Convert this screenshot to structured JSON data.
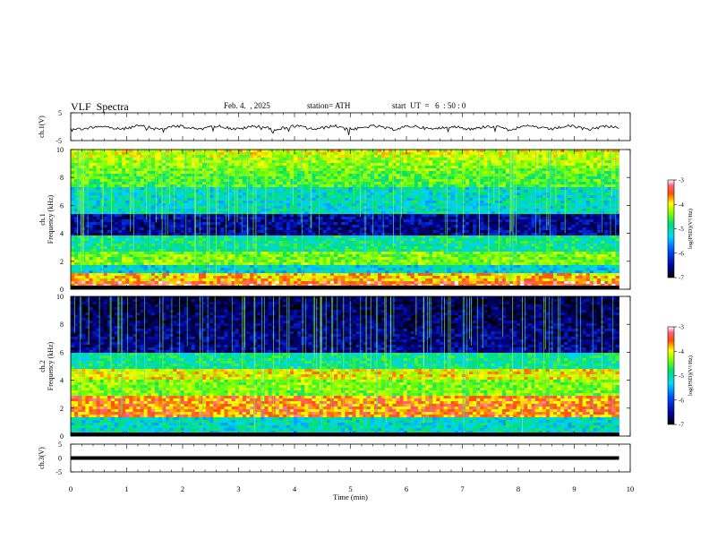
{
  "header": {
    "title": "VLF  Spectra",
    "date": "Feb. 4.  , 2025",
    "station": "station= ATH",
    "start": "start  UT  =   6  : 50 : 0"
  },
  "chart_data": [
    {
      "type": "line",
      "panel": "ch1-waveform",
      "ylabel": "ch.1(V)",
      "ylim": [
        -5,
        5
      ],
      "yticks": [
        "5",
        "-5"
      ],
      "xlim": [
        0,
        10
      ],
      "series": [
        {
          "values_note_free": true,
          "x": [
            0,
            9.8
          ],
          "y": [
            0,
            0
          ]
        }
      ]
    },
    {
      "type": "heatmap",
      "panel": "ch1-spectrogram",
      "ylabel_top": "ch.1",
      "ylabel": "Frequency  (kHz)",
      "ylim": [
        0,
        10
      ],
      "yticks": [
        "0",
        "2",
        "4",
        "6",
        "8",
        "10"
      ],
      "xlim": [
        0,
        10
      ],
      "data_end_min": 9.8,
      "colorbar": {
        "label": "log(PSD)(V²/Hz)",
        "range": [
          -7,
          -3
        ],
        "ticks": [
          "-3",
          "-4",
          "-5",
          "-6",
          "-7"
        ]
      },
      "bands_khz": [
        {
          "f": 0.3,
          "level": -3.4
        },
        {
          "f": 0.8,
          "level": -3.8
        },
        {
          "f": 1.5,
          "level": -5.3
        },
        {
          "f": 2.1,
          "level": -4.4
        },
        {
          "f": 3.3,
          "level": -5.0
        },
        {
          "f": 4.5,
          "level": -6.6
        },
        {
          "f": 6.2,
          "level": -5.2
        },
        {
          "f": 8.5,
          "level": -4.6
        }
      ]
    },
    {
      "type": "heatmap",
      "panel": "ch2-spectrogram",
      "ylabel_top": "ch.2",
      "ylabel": "Frequency  (kHz)",
      "ylim": [
        0,
        10
      ],
      "yticks": [
        "0",
        "2",
        "4",
        "6",
        "8",
        "10"
      ],
      "xlim": [
        0,
        10
      ],
      "data_end_min": 9.8,
      "colorbar": {
        "label": "log(PSD)(V²/Hz)",
        "range": [
          -7,
          -3
        ],
        "ticks": [
          "-3",
          "-4",
          "-5",
          "-6",
          "-7"
        ]
      },
      "bands_khz": [
        {
          "f": 0.5,
          "level": -5.2
        },
        {
          "f": 2.1,
          "level": -3.6
        },
        {
          "f": 3.5,
          "level": -4.4
        },
        {
          "f": 4.6,
          "level": -4.0
        },
        {
          "f": 5.0,
          "level": -5.0
        },
        {
          "f": 7.5,
          "level": -6.6
        }
      ]
    },
    {
      "type": "line",
      "panel": "ch3-waveform",
      "ylabel": "ch.3(V)",
      "ylim": [
        -5,
        5
      ],
      "yticks": [
        "5",
        "0",
        "-5"
      ],
      "xlim": [
        0,
        10
      ],
      "xlabel": "Time  (min)",
      "xticks": [
        "0",
        "1",
        "2",
        "3",
        "4",
        "5",
        "6",
        "7",
        "8",
        "9",
        "10"
      ],
      "series": [
        {
          "x": [
            0,
            9.8
          ],
          "y": [
            0,
            0
          ]
        }
      ]
    }
  ]
}
